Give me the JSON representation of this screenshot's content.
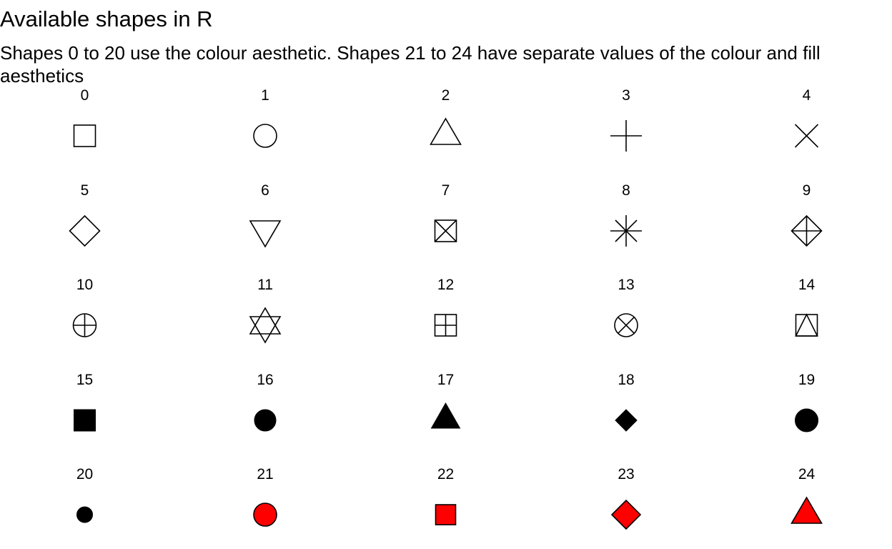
{
  "title": "Available shapes in R",
  "subtitle": "Shapes 0 to 20 use the colour aesthetic. Shapes 21 to 24 have separate values of the colour and fill aesthetics",
  "colors": {
    "colour": "#000000",
    "fill": "#ff0000",
    "background": "#ffffff"
  },
  "chart_data": {
    "type": "scatter",
    "title": "Available shapes in R",
    "subtitle": "Shapes 0 to 20 use the colour aesthetic. Shapes 21 to 24 have separate values of the colour and fill aesthetics",
    "xlabel": "",
    "ylabel": "",
    "grid": false,
    "legend": "none",
    "columns": 5,
    "shapes": [
      {
        "label": "0",
        "shape": "open-square"
      },
      {
        "label": "1",
        "shape": "open-circle"
      },
      {
        "label": "2",
        "shape": "open-triangle-up"
      },
      {
        "label": "3",
        "shape": "plus"
      },
      {
        "label": "4",
        "shape": "cross"
      },
      {
        "label": "5",
        "shape": "open-diamond"
      },
      {
        "label": "6",
        "shape": "open-triangle-down"
      },
      {
        "label": "7",
        "shape": "square-cross"
      },
      {
        "label": "8",
        "shape": "asterisk"
      },
      {
        "label": "9",
        "shape": "diamond-plus"
      },
      {
        "label": "10",
        "shape": "circle-plus"
      },
      {
        "label": "11",
        "shape": "star-of-david"
      },
      {
        "label": "12",
        "shape": "square-plus"
      },
      {
        "label": "13",
        "shape": "circle-cross"
      },
      {
        "label": "14",
        "shape": "square-triangle"
      },
      {
        "label": "15",
        "shape": "filled-square"
      },
      {
        "label": "16",
        "shape": "filled-circle"
      },
      {
        "label": "17",
        "shape": "filled-triangle-up"
      },
      {
        "label": "18",
        "shape": "filled-diamond-small"
      },
      {
        "label": "19",
        "shape": "solid-circle"
      },
      {
        "label": "20",
        "shape": "bullet"
      },
      {
        "label": "21",
        "shape": "fill-circle"
      },
      {
        "label": "22",
        "shape": "fill-square"
      },
      {
        "label": "23",
        "shape": "fill-diamond"
      },
      {
        "label": "24",
        "shape": "fill-triangle-up"
      }
    ]
  }
}
